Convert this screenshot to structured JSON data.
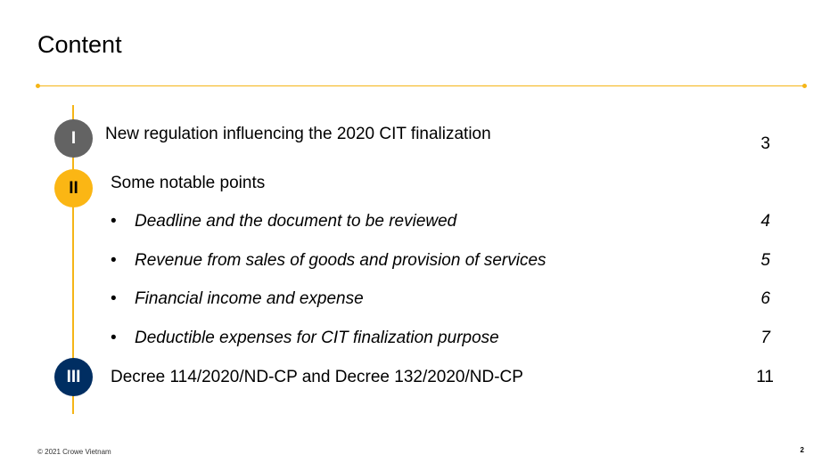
{
  "title": "Content",
  "colors": {
    "accent": "#f5b517",
    "section1": "#636363",
    "section2": "#fbb614",
    "section3": "#002e62"
  },
  "sections": [
    {
      "numeral": "I",
      "label": "New regulation influencing the 2020 CIT finalization",
      "page": "3"
    },
    {
      "numeral": "II",
      "label": "Some notable points",
      "items": [
        {
          "bullet": "•",
          "label": "Deadline and the document to be reviewed",
          "page": "4"
        },
        {
          "bullet": "•",
          "label": "Revenue from sales of goods and provision of services",
          "page": "5"
        },
        {
          "bullet": "•",
          "label": "Financial income and expense",
          "page": "6"
        },
        {
          "bullet": "•",
          "label": "Deductible expenses for CIT finalization purpose",
          "page": "7"
        }
      ]
    },
    {
      "numeral": "III",
      "label": "Decree 114/2020/ND-CP and Decree 132/2020/ND-CP",
      "page": "11"
    }
  ],
  "footer": {
    "copyright": "© 2021 Crowe Vietnam",
    "page_number": "2"
  }
}
